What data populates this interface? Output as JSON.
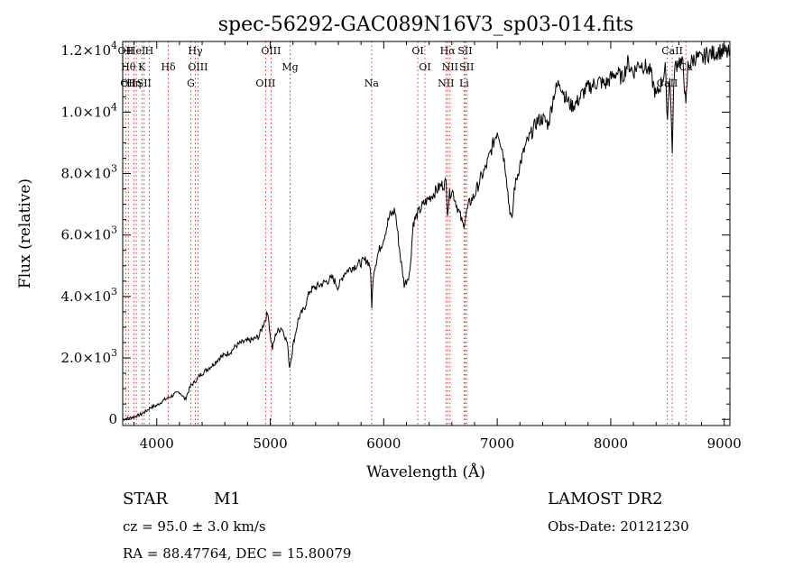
{
  "chart_data": {
    "type": "line",
    "title": "spec-56292-GAC089N16V3_sp03-014.fits",
    "xlabel": "Wavelength (Å)",
    "ylabel": "Flux (relative)",
    "xlim": [
      3700,
      9050
    ],
    "ylim": [
      -200,
      12300
    ],
    "x_ticks": [
      {
        "value": 4000,
        "label": "4000"
      },
      {
        "value": 5000,
        "label": "5000"
      },
      {
        "value": 6000,
        "label": "6000"
      },
      {
        "value": 7000,
        "label": "7000"
      },
      {
        "value": 8000,
        "label": "8000"
      },
      {
        "value": 9000,
        "label": "9000"
      }
    ],
    "y_ticks": [
      {
        "value": 0,
        "label": "0"
      },
      {
        "value": 2000,
        "mantissa": "2.0",
        "exp": "3"
      },
      {
        "value": 4000,
        "mantissa": "4.0",
        "exp": "3"
      },
      {
        "value": 6000,
        "mantissa": "6.0",
        "exp": "3"
      },
      {
        "value": 8000,
        "mantissa": "8.0",
        "exp": "3"
      },
      {
        "value": 10000,
        "mantissa": "1.0",
        "exp": "4"
      },
      {
        "value": 12000,
        "mantissa": "1.2",
        "exp": "4"
      }
    ],
    "grid": false,
    "series": [
      {
        "x": [
          3700,
          3760,
          3800,
          3850,
          3900,
          3950,
          4000,
          4050,
          4100,
          4150,
          4200,
          4250,
          4300,
          4330,
          4350,
          4400,
          4450,
          4500,
          4550,
          4600,
          4650,
          4700,
          4750,
          4800,
          4850,
          4900,
          4950,
          4980,
          5000,
          5020,
          5050,
          5100,
          5150,
          5170,
          5190,
          5200,
          5250,
          5300,
          5350,
          5400,
          5450,
          5500,
          5550,
          5600,
          5650,
          5700,
          5750,
          5800,
          5850,
          5880,
          5895,
          5910,
          5950,
          6000,
          6050,
          6100,
          6150,
          6180,
          6200,
          6230,
          6260,
          6300,
          6350,
          6400,
          6450,
          6500,
          6550,
          6562,
          6580,
          6600,
          6650,
          6700,
          6720,
          6750,
          6800,
          6850,
          6900,
          6950,
          7000,
          7020,
          7050,
          7080,
          7100,
          7130,
          7150,
          7200,
          7250,
          7300,
          7350,
          7400,
          7450,
          7500,
          7550,
          7600,
          7650,
          7700,
          7750,
          7800,
          7850,
          7900,
          7950,
          8000,
          8050,
          8100,
          8150,
          8200,
          8250,
          8300,
          8350,
          8400,
          8450,
          8480,
          8500,
          8520,
          8542,
          8560,
          8600,
          8640,
          8662,
          8680,
          8700,
          8750,
          8800,
          8850,
          8900,
          8950,
          9000,
          9050
        ],
        "y": [
          0,
          50,
          80,
          150,
          250,
          400,
          450,
          600,
          700,
          800,
          900,
          650,
          1100,
          1200,
          1300,
          1500,
          1650,
          1800,
          2000,
          2100,
          2200,
          2400,
          2500,
          2550,
          2600,
          2700,
          3200,
          3500,
          2700,
          2300,
          2800,
          3000,
          2500,
          1700,
          2100,
          2400,
          3300,
          3600,
          4200,
          4300,
          4400,
          4500,
          4600,
          4300,
          4750,
          4900,
          5000,
          5100,
          5200,
          5000,
          3700,
          4800,
          5400,
          5900,
          6600,
          6800,
          5200,
          4400,
          4500,
          4800,
          6400,
          6700,
          7000,
          7200,
          7400,
          7600,
          7700,
          6800,
          7300,
          7500,
          6900,
          6300,
          6600,
          7000,
          7300,
          7800,
          8200,
          8800,
          9400,
          9200,
          8700,
          8000,
          7100,
          6400,
          7500,
          8300,
          8900,
          9300,
          9700,
          9800,
          9600,
          10600,
          11000,
          10500,
          10200,
          10300,
          10600,
          10800,
          10900,
          11000,
          10900,
          11100,
          11300,
          11100,
          11600,
          11300,
          11600,
          11500,
          11300,
          10500,
          11000,
          11400,
          9800,
          11300,
          8800,
          11400,
          11700,
          11500,
          10100,
          11500,
          11600,
          11800,
          11700,
          11900,
          11900,
          12000,
          11950,
          11900
        ]
      }
    ],
    "lines": [
      {
        "wl": 3727,
        "labels": [
          "OII"
        ]
      },
      {
        "wl": 3750,
        "labels": [
          "Hθ",
          "OII"
        ]
      },
      {
        "wl": 3798,
        "labels": [
          "Hη"
        ]
      },
      {
        "wl": 3820,
        "labels": [
          "HeI"
        ]
      },
      {
        "wl": 3869,
        "labels": [
          "K"
        ]
      },
      {
        "wl": 3889,
        "labels": [
          "SII"
        ]
      },
      {
        "wl": 3934,
        "labels": [
          "H"
        ]
      },
      {
        "wl": 4102,
        "labels": [
          "Hδ"
        ]
      },
      {
        "wl": 4300,
        "labels": [
          "G"
        ]
      },
      {
        "wl": 4340,
        "labels": [
          "Hγ"
        ]
      },
      {
        "wl": 4363,
        "labels": [
          "OIII"
        ]
      },
      {
        "wl": 4959,
        "labels": [
          "OIII"
        ]
      },
      {
        "wl": 5007,
        "labels": [
          "OIII"
        ]
      },
      {
        "wl": 5175,
        "labels": [
          "Mg"
        ]
      },
      {
        "wl": 5893,
        "labels": [
          "Na"
        ]
      },
      {
        "wl": 6300,
        "labels": [
          "OI"
        ]
      },
      {
        "wl": 6363,
        "labels": [
          "OI"
        ]
      },
      {
        "wl": 6548,
        "labels": [
          "NII"
        ]
      },
      {
        "wl": 6563,
        "labels": [
          "Hα"
        ]
      },
      {
        "wl": 6584,
        "labels": [
          "NII"
        ]
      },
      {
        "wl": 6708,
        "labels": [
          "Li"
        ]
      },
      {
        "wl": 6717,
        "labels": [
          "SII"
        ]
      },
      {
        "wl": 6731,
        "labels": [
          "SII"
        ]
      },
      {
        "wl": 8498,
        "labels": [
          "CaII"
        ]
      },
      {
        "wl": 8542,
        "labels": [
          "CaII"
        ]
      },
      {
        "wl": 8662,
        "labels": [
          "Ca"
        ]
      }
    ]
  },
  "info": {
    "class": "STAR",
    "subclass": "M1",
    "survey": "LAMOST DR2",
    "cz": "cz = 95.0 ± 3.0 km/s",
    "obs_date": "Obs-Date: 20121230",
    "radec": "RA =  88.47764, DEC =  15.80079"
  }
}
